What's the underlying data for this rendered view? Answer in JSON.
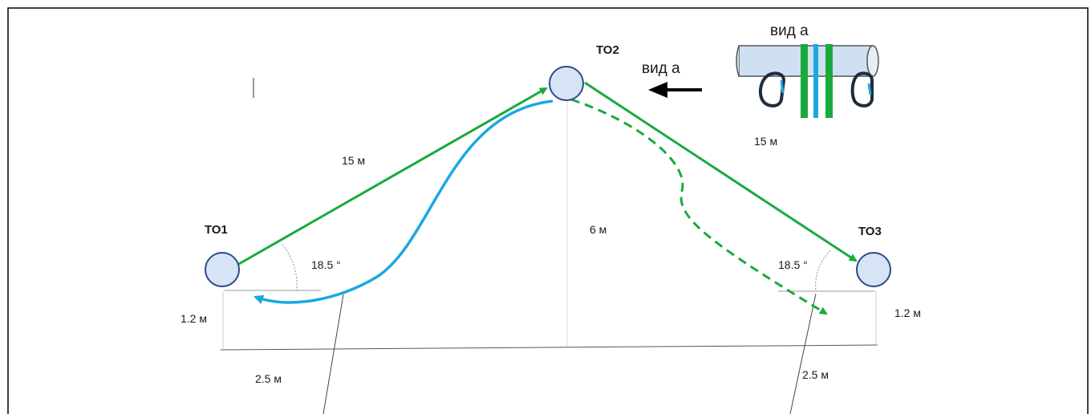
{
  "nodes": {
    "to1": "ТО1",
    "to2": "ТО2",
    "to3": "ТО3"
  },
  "distances": {
    "left_rope": "15 м",
    "right_rope": "15 м",
    "height": "6 м",
    "left_anchor_height": "1.2 м",
    "right_anchor_height": "1.2 м",
    "left_offset": "2.5 м",
    "right_offset": "2.5 м"
  },
  "angles": {
    "left": "18.5 °",
    "right": "18.5 °"
  },
  "view": {
    "arrow_label": "вид а",
    "inset_title": "вид а"
  },
  "colors": {
    "rope_green": "#1aaa3c",
    "rope_blue": "#1ba8e0",
    "node_fill": "#d6e4f5",
    "node_stroke": "#2d4a87",
    "frame": "#000000"
  }
}
